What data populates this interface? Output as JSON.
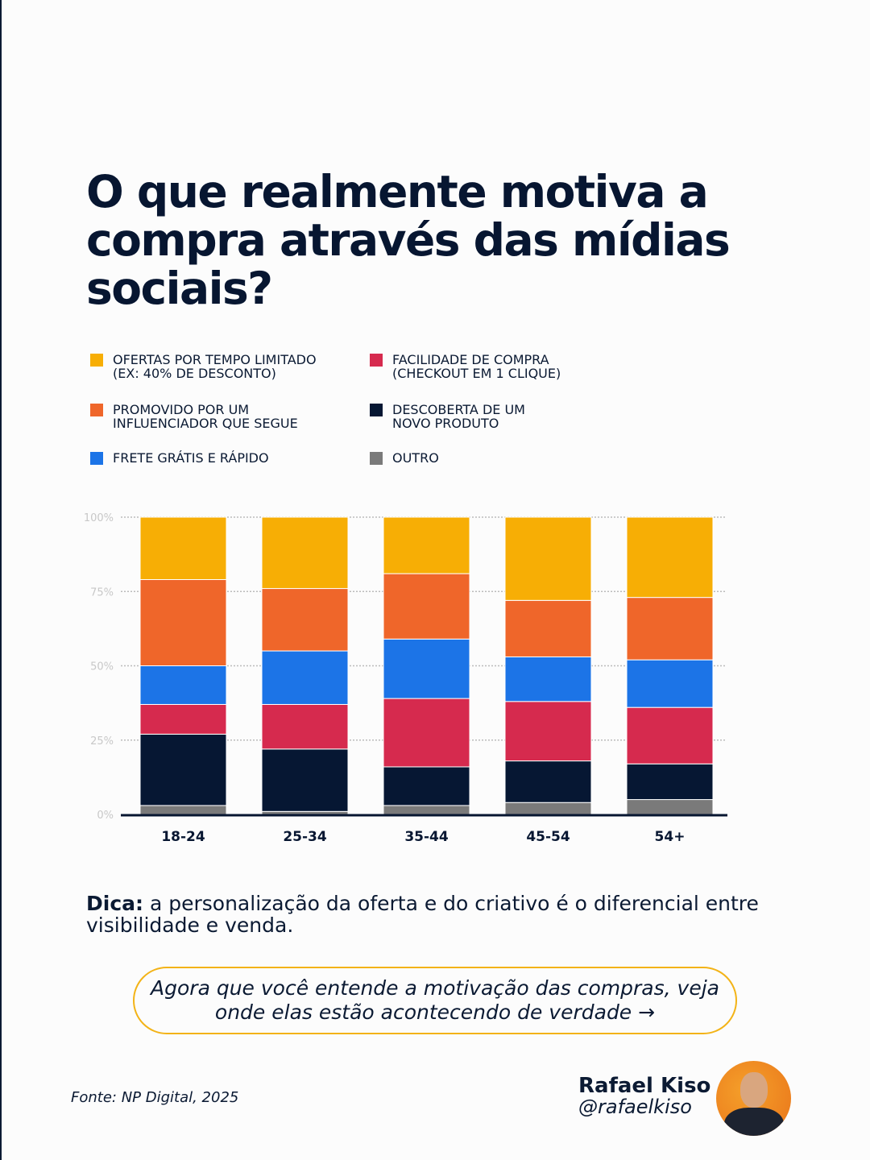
{
  "title": "O que realmente motiva a compra através das mídias sociais?",
  "legend": [
    {
      "label": "OFERTAS POR TEMPO LIMITADO\n(EX: 40% DE DESCONTO)",
      "color": "#f7ae05"
    },
    {
      "label": "FACILIDADE DE COMPRA\n(CHECKOUT EM 1 CLIQUE)",
      "color": "#d62a4e"
    },
    {
      "label": "PROMOVIDO POR UM\nINFLUENCIADOR QUE SEGUE",
      "color": "#ef662a"
    },
    {
      "label": "DESCOBERTA DE UM\nNOVO PRODUTO",
      "color": "#061733"
    },
    {
      "label": "FRETE GRÁTIS E RÁPIDO",
      "color": "#1c74e7"
    },
    {
      "label": "OUTRO",
      "color": "#7a7a7a"
    }
  ],
  "chart_data": {
    "type": "bar",
    "stacked": true,
    "normalized": true,
    "categories": [
      "18-24",
      "25-34",
      "35-44",
      "45-54",
      "54+"
    ],
    "yticks": [
      "0%",
      "25%",
      "50%",
      "75%",
      "100%"
    ],
    "ylim": [
      0,
      100
    ],
    "grid": true,
    "series": [
      {
        "name": "OUTRO",
        "color": "#7a7a7a",
        "values": [
          3,
          1,
          3,
          4,
          5
        ]
      },
      {
        "name": "DESCOBERTA DE UM NOVO PRODUTO",
        "color": "#061733",
        "values": [
          24,
          21,
          13,
          14,
          12
        ]
      },
      {
        "name": "FACILIDADE DE COMPRA (CHECKOUT EM 1 CLIQUE)",
        "color": "#d62a4e",
        "values": [
          10,
          15,
          23,
          20,
          19
        ]
      },
      {
        "name": "FRETE GRÁTIS E RÁPIDO",
        "color": "#1c74e7",
        "values": [
          13,
          18,
          20,
          15,
          16
        ]
      },
      {
        "name": "PROMOVIDO POR UM INFLUENCIADOR QUE SEGUE",
        "color": "#ef662a",
        "values": [
          29,
          21,
          22,
          19,
          21
        ]
      },
      {
        "name": "OFERTAS POR TEMPO LIMITADO (EX: 40% DE DESCONTO)",
        "color": "#f7ae05",
        "values": [
          21,
          24,
          19,
          28,
          27
        ]
      }
    ]
  },
  "tip": {
    "bold": "Dica:",
    "text": " a personalização da oferta e do criativo é o diferencial entre visibilidade e venda."
  },
  "cta": "Agora que você entende a motivação das compras, veja onde elas estão acontecendo de verdade →",
  "source": "Fonte: NP Digital, 2025",
  "author": {
    "name": "Rafael Kiso",
    "handle": "@rafaelkiso"
  }
}
